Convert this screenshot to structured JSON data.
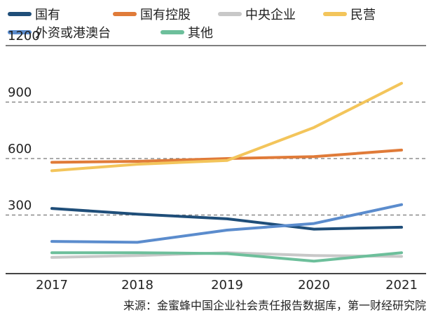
{
  "chart_data": {
    "type": "line",
    "title": "",
    "xlabel": "",
    "ylabel": "",
    "x": [
      "2017",
      "2018",
      "2019",
      "2020",
      "2021"
    ],
    "ylim": [
      0,
      1200
    ],
    "yticks": [
      300,
      600,
      900,
      1200
    ],
    "ytick_labels": [
      "300",
      "600",
      "900",
      "1200"
    ],
    "grid": "dashed horizontal",
    "legend_position": "top-left",
    "series": [
      {
        "name": "国有",
        "color": "#1f4e79",
        "values": [
          335,
          305,
          280,
          225,
          235
        ]
      },
      {
        "name": "国有控股",
        "color": "#e07b39",
        "values": [
          580,
          585,
          600,
          610,
          645
        ]
      },
      {
        "name": "中央企业",
        "color": "#c8c8c8",
        "values": [
          75,
          85,
          100,
          85,
          80
        ]
      },
      {
        "name": "民营",
        "color": "#f3c55b",
        "values": [
          535,
          570,
          590,
          765,
          1000
        ]
      },
      {
        "name": "外资或港澳台",
        "color": "#5b8ccd",
        "values": [
          160,
          155,
          220,
          255,
          355
        ]
      },
      {
        "name": "其他",
        "color": "#6dbf9b",
        "values": [
          100,
          100,
          95,
          55,
          100
        ]
      }
    ]
  },
  "source": "来源：金蜜蜂中国企业社会责任报告数据库，第一财经研究院"
}
